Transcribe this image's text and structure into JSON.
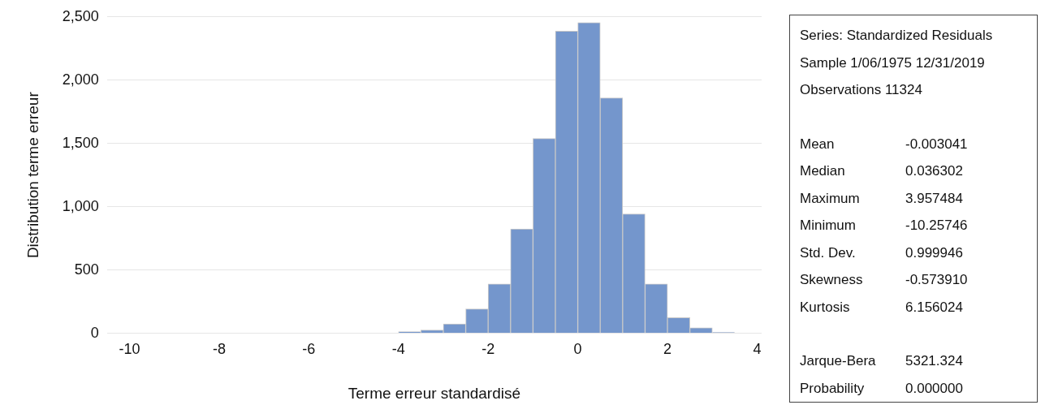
{
  "chart_data": {
    "type": "histogram",
    "xlabel": "Terme erreur standardisé",
    "ylabel": "Distribution terme erreur",
    "bins": [
      -4,
      -3.5,
      -3,
      -2.5,
      -2,
      -1.5,
      -1,
      -0.5,
      0,
      0.5,
      1,
      1.5,
      2,
      2.5,
      3,
      3.5
    ],
    "values": [
      13,
      25,
      74,
      192,
      389,
      824,
      1539,
      2388,
      2455,
      1860,
      943,
      389,
      123,
      44,
      6
    ],
    "color": "#7496cc",
    "xlim": [
      -10.5,
      4.1
    ],
    "xticks": [
      -10,
      -8,
      -6,
      -4,
      -2,
      0,
      2,
      4
    ],
    "ylim": [
      0,
      2500
    ],
    "yticks": [
      0,
      500,
      {
        "value": 1000,
        "label": "1,000"
      },
      {
        "value": 1500,
        "label": "1,500"
      },
      {
        "value": 2000,
        "label": "2,000"
      },
      {
        "value": 2500,
        "label": "2,500"
      }
    ],
    "grid": "y",
    "legend": false,
    "annotations": [
      "Series: Standardized Residuals",
      "Sample 1/06/1975 12/31/2019",
      "Observations 11324",
      "Mean\t-0.003041",
      "Median\t0.036302",
      "Maximum\t3.957484",
      "Minimum\t-10.25746",
      "Std. Dev.\t0.999946",
      "Skewness\t-0.573910",
      "Kurtosis\t6.156024",
      "Jarque-Bera\t5321.324",
      "Probability\t0.000000"
    ]
  }
}
